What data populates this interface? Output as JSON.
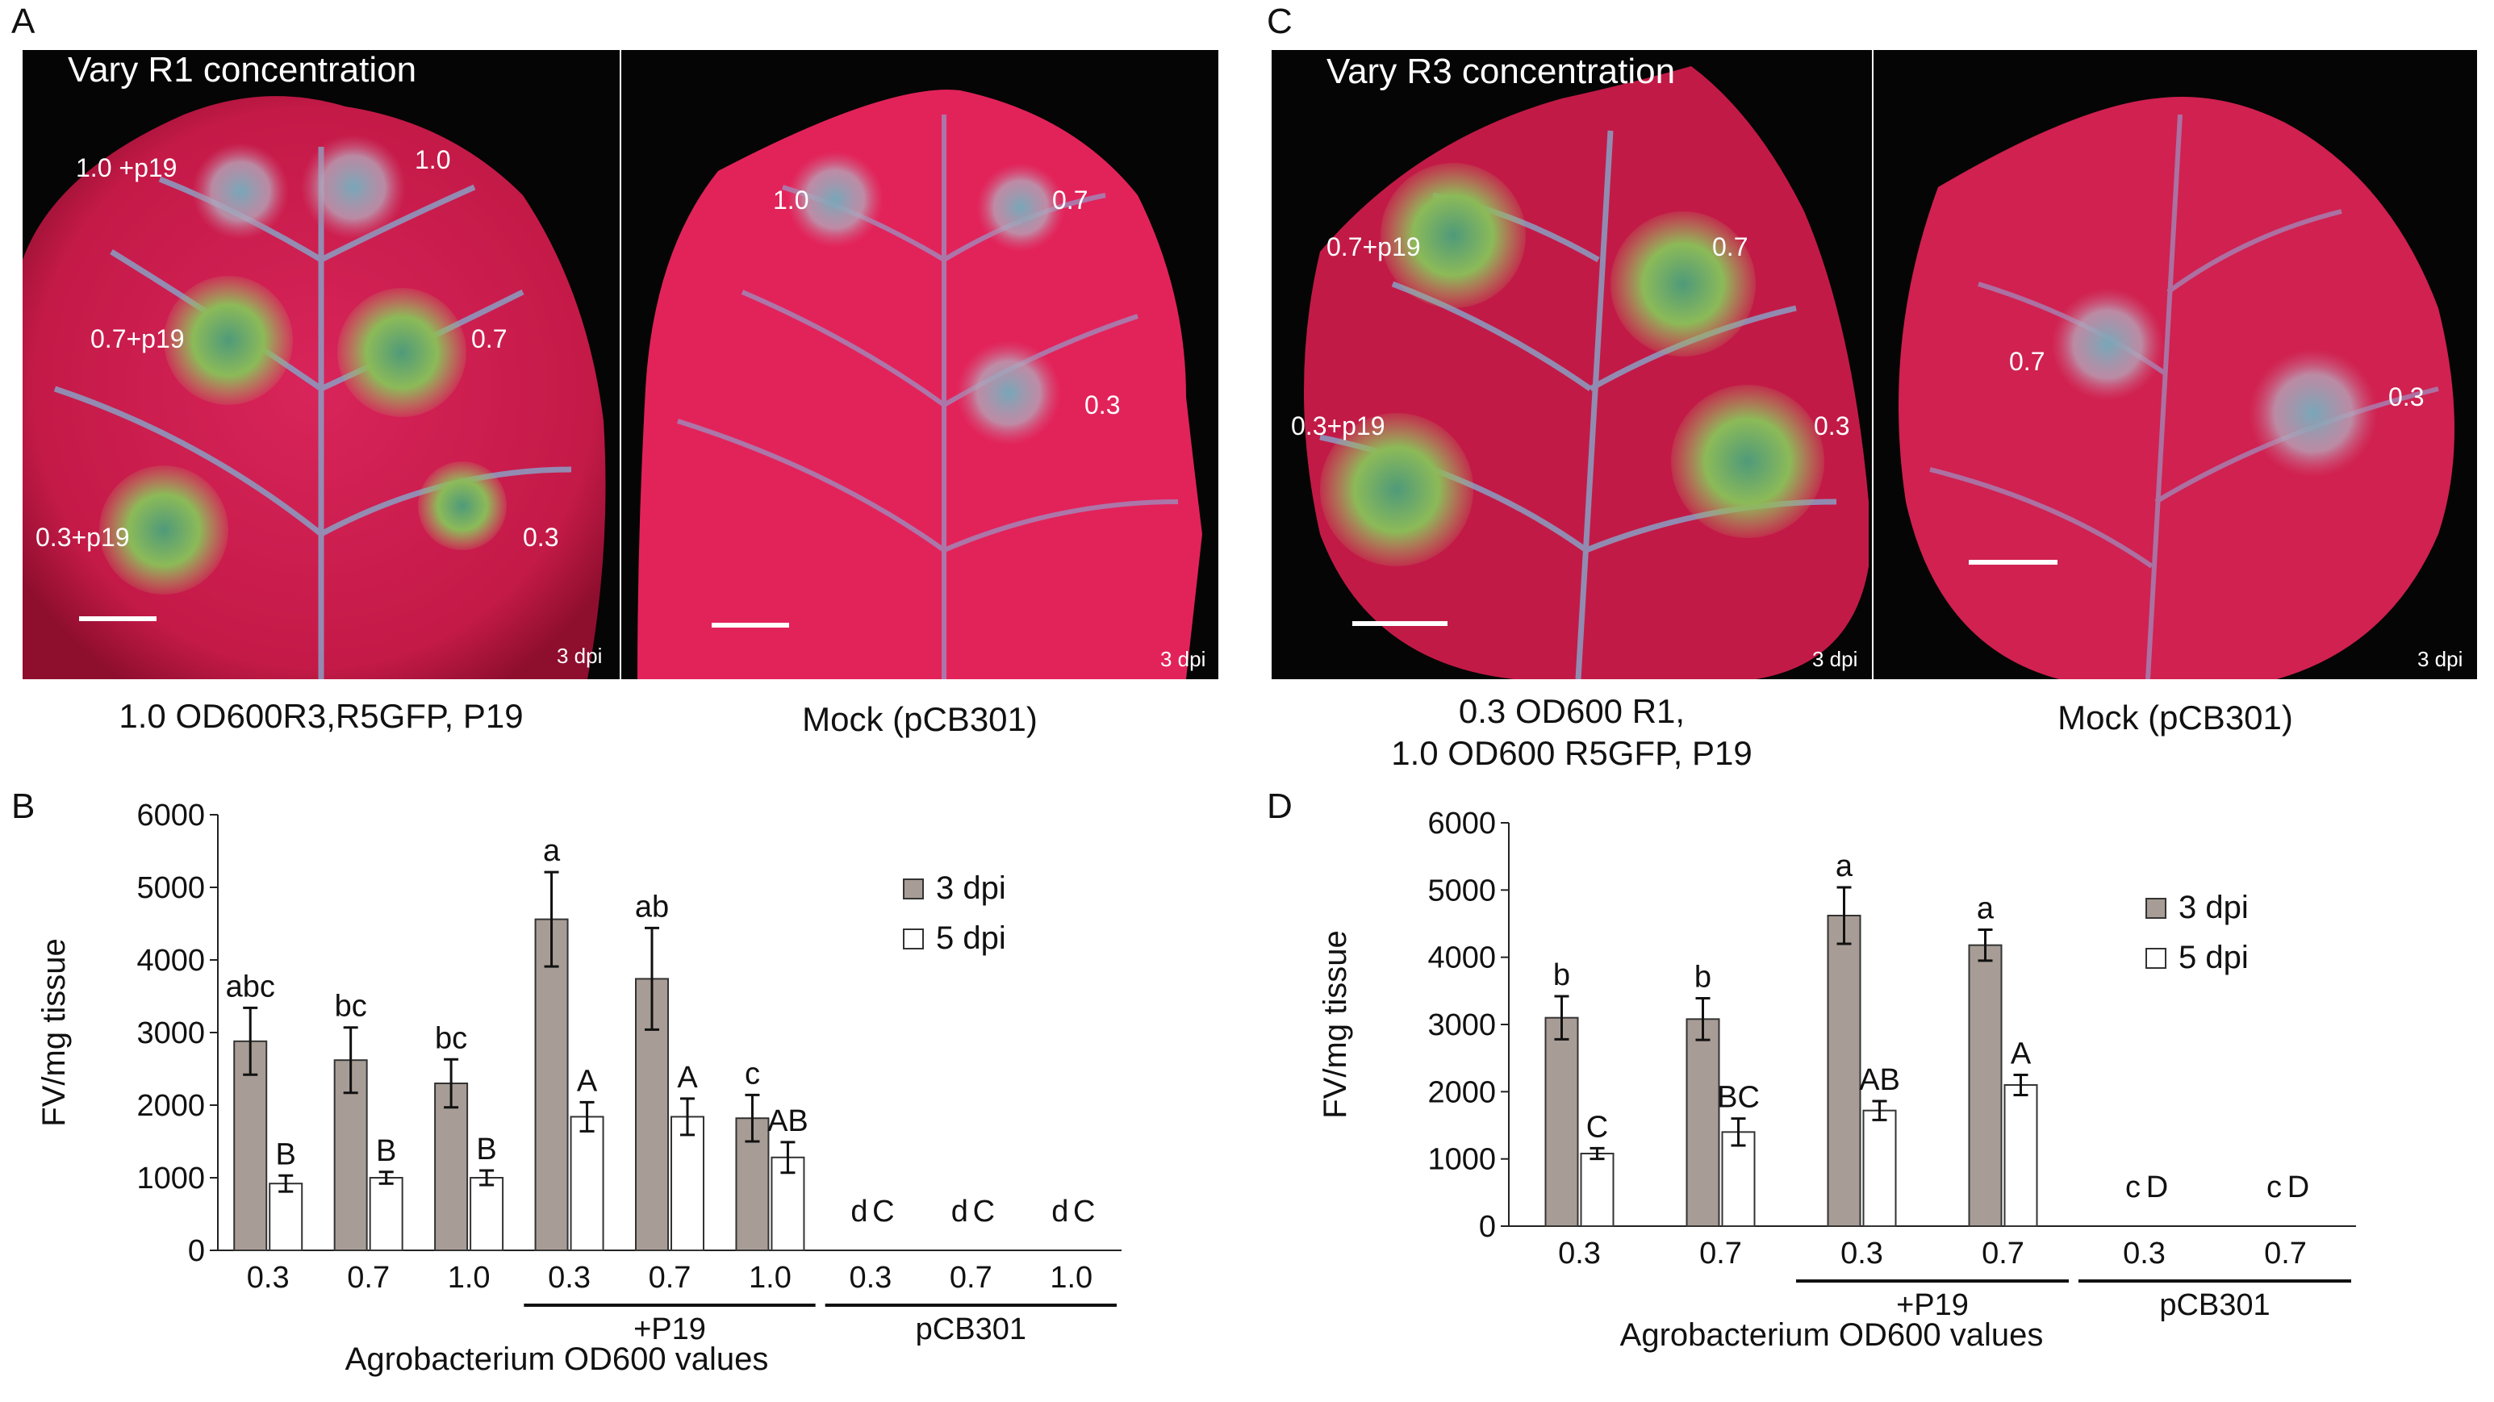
{
  "panels": {
    "a": {
      "letter": "A",
      "title": "Vary  R1 concentration",
      "left_labels": [
        "1.0 +p19",
        "1.0",
        "0.7+p19",
        "0.7",
        "0.3+p19",
        "0.3"
      ],
      "right_labels": [
        "1.0",
        "0.7",
        "0.3"
      ],
      "dpi_left": "3 dpi",
      "dpi_right": "3 dpi",
      "caption_left": "1.0 OD600R3,R5GFP, P19",
      "caption_right": "Mock (pCB301)"
    },
    "c": {
      "letter": "C",
      "title": "Vary R3 concentration",
      "left_labels": [
        "0.7+p19",
        "0.7",
        "0.3+p19",
        "0.3"
      ],
      "right_labels": [
        "0.7",
        "0.3"
      ],
      "dpi_left": "3 dpi",
      "dpi_right": "3 dpi",
      "caption_left_line1": "0.3 OD600 R1,",
      "caption_left_line2": "1.0 OD600 R5GFP, P19",
      "caption_right": "Mock (pCB301)"
    },
    "b_letter": "B",
    "d_letter": "D"
  },
  "colors": {
    "leaf_red": "#d81e4e",
    "leaf_dark": "#9a0f30",
    "background_black": "#050505",
    "vein": "#8a9fc4",
    "gfp_green": "#86b84e",
    "bar_3dpi": "#a89d96",
    "bar_5dpi": "#ffffff"
  },
  "chart_data": [
    {
      "id": "B",
      "type": "bar",
      "ylabel": "FV/mg tissue",
      "xlabel": "Agrobacterium OD600 values",
      "ylim": [
        0,
        6000
      ],
      "yticks": [
        0,
        1000,
        2000,
        3000,
        4000,
        5000,
        6000
      ],
      "categories": [
        "0.3",
        "0.7",
        "1.0",
        "0.3",
        "0.7",
        "1.0",
        "0.3",
        "0.7",
        "1.0"
      ],
      "groups": [
        {
          "label": "+P19",
          "from": 3,
          "to": 5
        },
        {
          "label": "pCB301",
          "from": 6,
          "to": 8
        }
      ],
      "legend": {
        "position": "top-right",
        "entries": [
          "3 dpi",
          "5 dpi"
        ]
      },
      "series": [
        {
          "name": "3 dpi",
          "values": [
            2880,
            2620,
            2300,
            4560,
            3740,
            1820,
            0,
            0,
            0
          ],
          "errors": [
            460,
            450,
            330,
            650,
            700,
            320,
            0,
            0,
            0
          ],
          "letters": [
            "abc",
            "bc",
            "bc",
            "a",
            "ab",
            "c",
            "d",
            "d",
            "d"
          ]
        },
        {
          "name": "5 dpi",
          "values": [
            920,
            1000,
            1000,
            1840,
            1840,
            1280,
            0,
            0,
            0
          ],
          "errors": [
            110,
            80,
            100,
            200,
            250,
            210,
            0,
            0,
            0
          ],
          "letters": [
            "B",
            "B",
            "B",
            "A",
            "A",
            "AB",
            "C",
            "C",
            "C"
          ]
        }
      ]
    },
    {
      "id": "D",
      "type": "bar",
      "ylabel": "FV/mg tissue",
      "xlabel": "Agrobacterium OD600 values",
      "ylim": [
        0,
        6000
      ],
      "yticks": [
        0,
        1000,
        2000,
        3000,
        4000,
        5000,
        6000
      ],
      "categories": [
        "0.3",
        "0.7",
        "0.3",
        "0.7",
        "0.3",
        "0.7"
      ],
      "groups": [
        {
          "label": "+P19",
          "from": 2,
          "to": 3
        },
        {
          "label": "pCB301",
          "from": 4,
          "to": 5
        }
      ],
      "legend": {
        "position": "top-right",
        "entries": [
          "3 dpi",
          "5 dpi"
        ]
      },
      "series": [
        {
          "name": "3 dpi",
          "values": [
            3100,
            3080,
            4620,
            4180,
            0,
            0
          ],
          "errors": [
            320,
            310,
            420,
            230,
            0,
            0
          ],
          "letters": [
            "b",
            "b",
            "a",
            "a",
            "c",
            "c"
          ]
        },
        {
          "name": "5 dpi",
          "values": [
            1080,
            1400,
            1720,
            2100,
            0,
            0
          ],
          "errors": [
            80,
            200,
            140,
            150,
            0,
            0
          ],
          "letters": [
            "C",
            "BC",
            "AB",
            "A",
            "D",
            "D"
          ]
        }
      ]
    }
  ]
}
